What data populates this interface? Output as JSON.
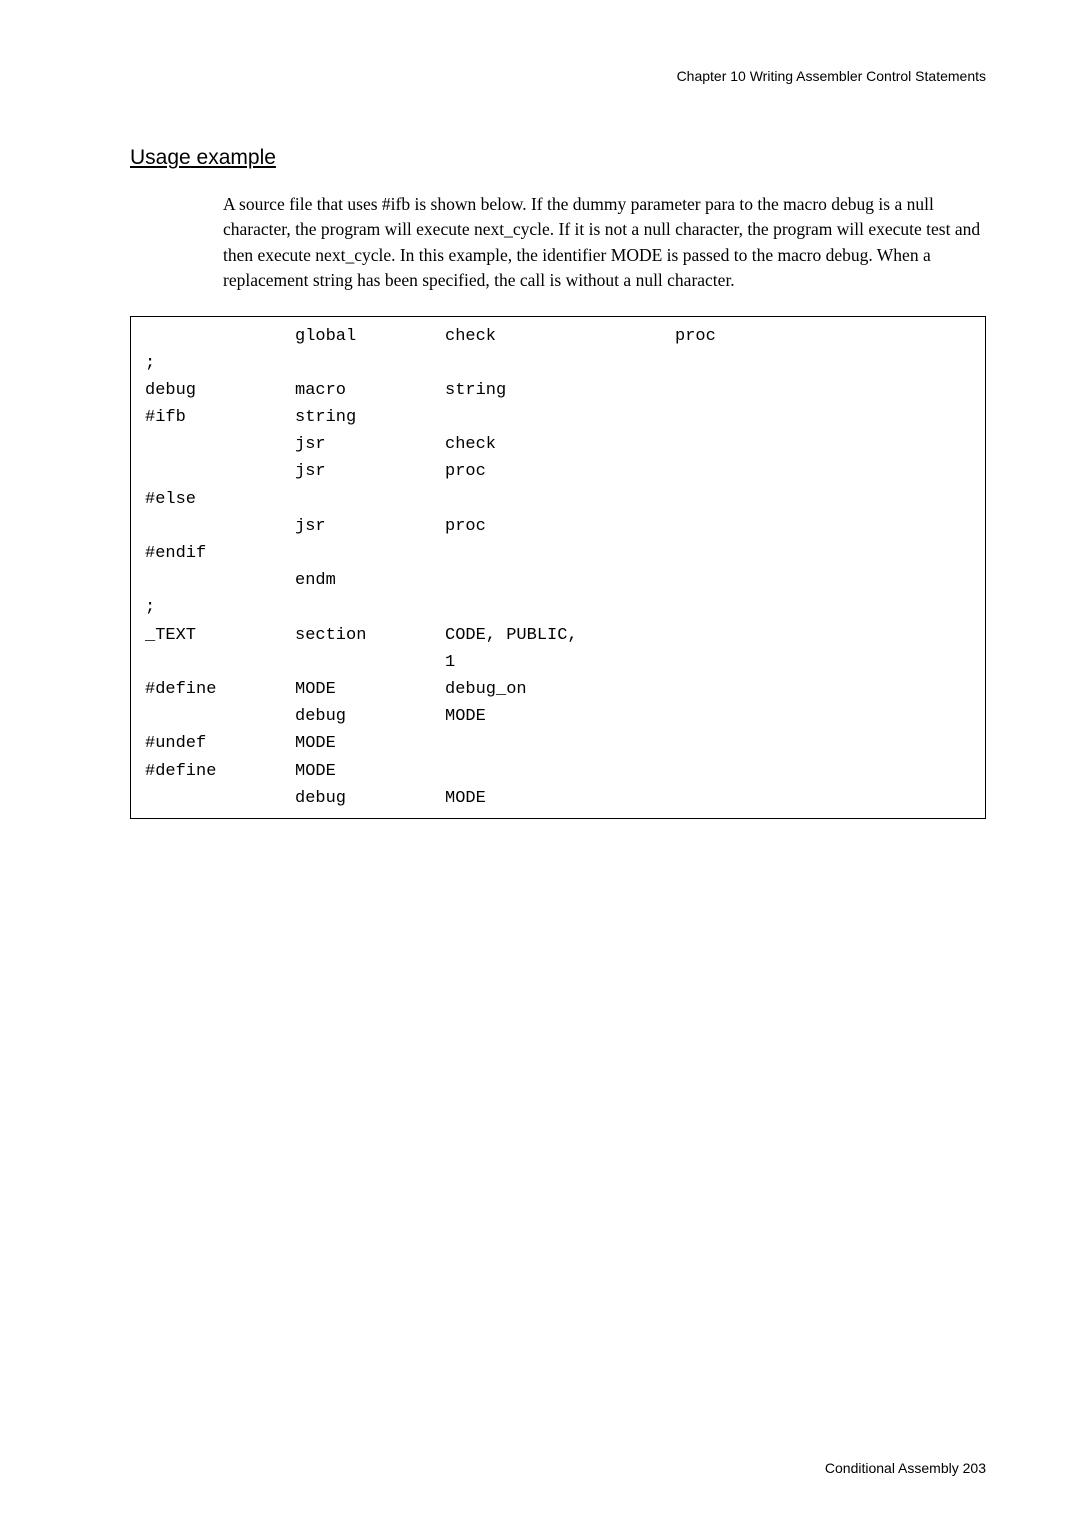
{
  "chapter_header": "Chapter 10   Writing Assembler Control Statements",
  "section_title": "Usage example",
  "paragraph": "A source file that uses #ifb is shown below.  If the dummy parameter para to the macro debug is a null character, the program will execute next_cycle.  If it is not a null character, the program will execute test and then execute next_cycle.  In this example, the identifier MODE is passed to the macro debug. When a replacement string has been specified, the call is without a null character.",
  "code": [
    {
      "c1": "",
      "c2": "global",
      "c3": "check",
      "c4": "proc"
    },
    {
      "c1": ";",
      "c2": "",
      "c3": "",
      "c4": ""
    },
    {
      "c1": "debug",
      "c2": "macro",
      "c3": "string",
      "c4": ""
    },
    {
      "c1": "#ifb",
      "c2": "string",
      "c3": "",
      "c4": ""
    },
    {
      "c1": "",
      "c2": "jsr",
      "c3": "check",
      "c4": ""
    },
    {
      "c1": "",
      "c2": "jsr",
      "c3": "proc",
      "c4": ""
    },
    {
      "c1": "#else",
      "c2": "",
      "c3": "",
      "c4": ""
    },
    {
      "c1": "",
      "c2": "jsr",
      "c3": "proc",
      "c4": ""
    },
    {
      "c1": "#endif",
      "c2": "",
      "c3": "",
      "c4": ""
    },
    {
      "c1": "",
      "c2": "endm",
      "c3": "",
      "c4": ""
    },
    {
      "c1": ";",
      "c2": "",
      "c3": "",
      "c4": ""
    },
    {
      "c1": "_TEXT",
      "c2": "section",
      "c3": "CODE, PUBLIC,",
      "c4": ""
    },
    {
      "c1": "",
      "c2": "",
      "c3": "1",
      "c4": ""
    },
    {
      "c1": "#define",
      "c2": "MODE",
      "c3": "debug_on",
      "c4": ""
    },
    {
      "c1": "",
      "c2": "debug",
      "c3": "MODE",
      "c4": ""
    },
    {
      "c1": "#undef",
      "c2": "MODE",
      "c3": "",
      "c4": ""
    },
    {
      "c1": "#define",
      "c2": "MODE",
      "c3": "",
      "c4": ""
    },
    {
      "c1": "",
      "c2": "debug",
      "c3": "MODE",
      "c4": ""
    }
  ],
  "footer": "Conditional Assembly  203"
}
